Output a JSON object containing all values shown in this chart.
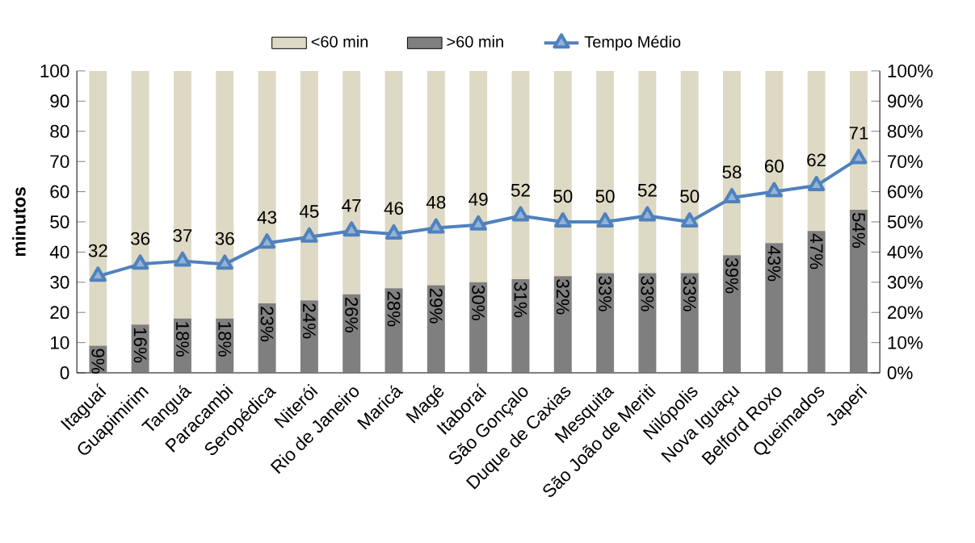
{
  "chart_data": {
    "type": "bar",
    "stacked": true,
    "legend": "top",
    "ylabel": "minutos",
    "categories": [
      "Itaguaí",
      "Guapimirim",
      "Tanguá",
      "Paracambi",
      "Seropédica",
      "Niterói",
      "Rio de Janeiro",
      "Maricá",
      "Magé",
      "Itaboraí",
      "São Gonçalo",
      "Duque de Caxias",
      "Mesquita",
      "São João de Meriti",
      "Nilópolis",
      "Nova Iguaçu",
      "Belford Roxo",
      "Queimados",
      "Japeri"
    ],
    "series": [
      {
        "name": ">60 min",
        "axis": "y2",
        "color": "#7f7f7f",
        "values": [
          9,
          16,
          18,
          18,
          23,
          24,
          26,
          28,
          29,
          30,
          31,
          32,
          33,
          33,
          33,
          39,
          43,
          47,
          54
        ],
        "value_labels": [
          "9%",
          "16%",
          "18%",
          "18%",
          "23%",
          "24%",
          "26%",
          "28%",
          "29%",
          "30%",
          "31%",
          "32%",
          "33%",
          "33%",
          "33%",
          "39%",
          "43%",
          "47%",
          "54%"
        ]
      },
      {
        "name": "<60 min",
        "axis": "y2",
        "color": "#ddd9c4",
        "values": [
          91,
          84,
          82,
          82,
          77,
          76,
          74,
          72,
          71,
          70,
          69,
          68,
          67,
          67,
          67,
          61,
          57,
          53,
          46
        ]
      },
      {
        "name": "Tempo Médio",
        "type": "line",
        "color": "#4f81bd",
        "marker": "triangle",
        "values": [
          32,
          36,
          37,
          36,
          43,
          45,
          47,
          46,
          48,
          49,
          52,
          50,
          50,
          52,
          50,
          58,
          60,
          62,
          71
        ],
        "value_labels": [
          "32",
          "36",
          "37",
          "36",
          "43",
          "45",
          "47",
          "46",
          "48",
          "49",
          "52",
          "50",
          "50",
          "52",
          "50",
          "58",
          "60",
          "62",
          "71"
        ]
      }
    ],
    "ylim": [
      0,
      100
    ],
    "yticks": [
      0,
      10,
      20,
      30,
      40,
      50,
      60,
      70,
      80,
      90,
      100
    ],
    "y2lim": [
      0,
      100
    ],
    "y2ticks": [
      {
        "value": 0,
        "label": "0%"
      },
      {
        "value": 10,
        "label": "10%"
      },
      {
        "value": 20,
        "label": "20%"
      },
      {
        "value": 30,
        "label": "30%"
      },
      {
        "value": 40,
        "label": "40%"
      },
      {
        "value": 50,
        "label": "50%"
      },
      {
        "value": 60,
        "label": "60%"
      },
      {
        "value": 70,
        "label": "70%"
      },
      {
        "value": 80,
        "label": "80%"
      },
      {
        "value": 90,
        "label": "90%"
      },
      {
        "value": 100,
        "label": "100%"
      }
    ]
  }
}
